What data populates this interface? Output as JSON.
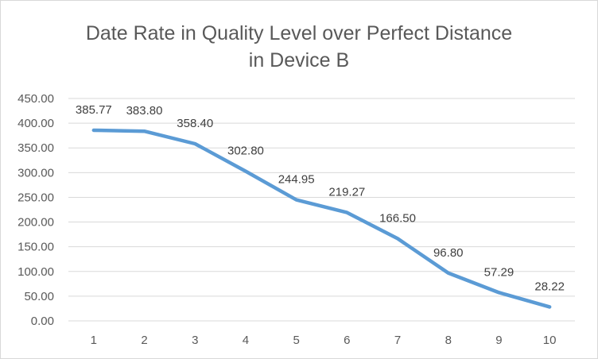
{
  "chart_data": {
    "type": "line",
    "title_lines": [
      "Date Rate in Quality Level over Perfect Distance",
      "in Device B"
    ],
    "xlabel": "",
    "ylabel": "",
    "categories": [
      "1",
      "2",
      "3",
      "4",
      "5",
      "6",
      "7",
      "8",
      "9",
      "10"
    ],
    "series": [
      {
        "values": [
          385.77,
          383.8,
          358.4,
          302.8,
          244.95,
          219.27,
          166.5,
          96.8,
          57.29,
          28.22
        ],
        "value_labels": [
          "385.77",
          "383.80",
          "358.40",
          "302.80",
          "244.95",
          "219.27",
          "166.50",
          "96.80",
          "57.29",
          "28.22"
        ],
        "color": "#5b9bd5"
      }
    ],
    "ylim": [
      0,
      450
    ],
    "yticks": [
      "0.00",
      "50.00",
      "100.00",
      "150.00",
      "200.00",
      "250.00",
      "300.00",
      "350.00",
      "400.00",
      "450.00"
    ],
    "grid": true,
    "legend": "none",
    "gridline_color": "#d9d9d9",
    "text_color": "#595959"
  }
}
